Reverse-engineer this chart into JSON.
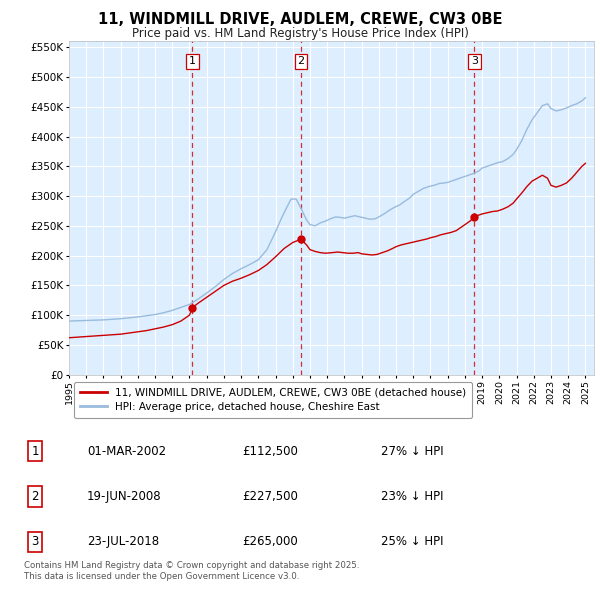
{
  "title": "11, WINDMILL DRIVE, AUDLEM, CREWE, CW3 0BE",
  "subtitle": "Price paid vs. HM Land Registry's House Price Index (HPI)",
  "ylim": [
    0,
    560000
  ],
  "yticks": [
    0,
    50000,
    100000,
    150000,
    200000,
    250000,
    300000,
    350000,
    400000,
    450000,
    500000,
    550000
  ],
  "ytick_labels": [
    "£0",
    "£50K",
    "£100K",
    "£150K",
    "£200K",
    "£250K",
    "£300K",
    "£350K",
    "£400K",
    "£450K",
    "£500K",
    "£550K"
  ],
  "red_line_color": "#cc0000",
  "blue_line_color": "#99bbdd",
  "sale_marker_color": "#cc0000",
  "vline_color": "#cc0000",
  "background_color": "#ffffff",
  "plot_bg_color": "#ddeeff",
  "grid_color": "#ffffff",
  "sale_dates": [
    2002.17,
    2008.47,
    2018.55
  ],
  "sale_prices": [
    112500,
    227500,
    265000
  ],
  "sale_labels": [
    "1",
    "2",
    "3"
  ],
  "legend_red_label": "11, WINDMILL DRIVE, AUDLEM, CREWE, CW3 0BE (detached house)",
  "legend_blue_label": "HPI: Average price, detached house, Cheshire East",
  "table_rows": [
    [
      "1",
      "01-MAR-2002",
      "£112,500",
      "27% ↓ HPI"
    ],
    [
      "2",
      "19-JUN-2008",
      "£227,500",
      "23% ↓ HPI"
    ],
    [
      "3",
      "23-JUL-2018",
      "£265,000",
      "25% ↓ HPI"
    ]
  ],
  "footnote": "Contains HM Land Registry data © Crown copyright and database right 2025.\nThis data is licensed under the Open Government Licence v3.0.",
  "title_fontsize": 10.5,
  "subtitle_fontsize": 8.5,
  "tick_fontsize": 7.5,
  "legend_fontsize": 7.5,
  "hpi_years": [
    1995.0,
    1995.5,
    1996.0,
    1996.5,
    1997.0,
    1997.5,
    1998.0,
    1998.5,
    1999.0,
    1999.5,
    2000.0,
    2000.5,
    2001.0,
    2001.5,
    2002.0,
    2002.5,
    2003.0,
    2003.5,
    2004.0,
    2004.5,
    2005.0,
    2005.5,
    2006.0,
    2006.5,
    2007.0,
    2007.3,
    2007.6,
    2007.9,
    2008.2,
    2008.5,
    2008.8,
    2009.0,
    2009.3,
    2009.6,
    2009.9,
    2010.2,
    2010.5,
    2010.8,
    2011.0,
    2011.3,
    2011.6,
    2011.9,
    2012.2,
    2012.5,
    2012.8,
    2013.0,
    2013.3,
    2013.6,
    2013.9,
    2014.2,
    2014.5,
    2014.8,
    2015.0,
    2015.3,
    2015.6,
    2015.9,
    2016.2,
    2016.5,
    2016.8,
    2017.0,
    2017.3,
    2017.6,
    2017.9,
    2018.2,
    2018.5,
    2018.8,
    2019.0,
    2019.3,
    2019.6,
    2019.9,
    2020.2,
    2020.5,
    2020.8,
    2021.0,
    2021.3,
    2021.6,
    2021.9,
    2022.2,
    2022.5,
    2022.8,
    2023.0,
    2023.3,
    2023.6,
    2023.9,
    2024.2,
    2024.5,
    2024.8,
    2025.0
  ],
  "hpi_prices": [
    90000,
    90500,
    91000,
    91500,
    92000,
    93000,
    94000,
    95500,
    97000,
    99000,
    101000,
    104000,
    108000,
    113000,
    118000,
    127000,
    137000,
    148000,
    160000,
    170000,
    178000,
    185000,
    193000,
    210000,
    240000,
    260000,
    278000,
    295000,
    295000,
    278000,
    260000,
    252000,
    250000,
    255000,
    258000,
    262000,
    265000,
    264000,
    263000,
    265000,
    267000,
    265000,
    263000,
    261000,
    262000,
    265000,
    270000,
    276000,
    281000,
    285000,
    291000,
    297000,
    303000,
    308000,
    313000,
    316000,
    318000,
    321000,
    322000,
    323000,
    326000,
    329000,
    332000,
    335000,
    338000,
    342000,
    347000,
    350000,
    353000,
    356000,
    358000,
    363000,
    370000,
    378000,
    393000,
    412000,
    428000,
    440000,
    452000,
    455000,
    447000,
    443000,
    445000,
    448000,
    452000,
    455000,
    460000,
    465000
  ],
  "red_years": [
    1995.0,
    1995.5,
    1996.0,
    1996.5,
    1997.0,
    1997.5,
    1998.0,
    1998.5,
    1999.0,
    1999.5,
    2000.0,
    2000.5,
    2001.0,
    2001.5,
    2002.0,
    2002.17,
    2002.5,
    2003.0,
    2003.5,
    2004.0,
    2004.5,
    2005.0,
    2005.5,
    2006.0,
    2006.5,
    2007.0,
    2007.5,
    2007.9,
    2008.0,
    2008.47,
    2008.8,
    2009.0,
    2009.3,
    2009.6,
    2009.9,
    2010.3,
    2010.6,
    2010.9,
    2011.2,
    2011.5,
    2011.8,
    2012.0,
    2012.3,
    2012.6,
    2012.9,
    2013.2,
    2013.5,
    2013.8,
    2014.0,
    2014.3,
    2014.6,
    2014.9,
    2015.2,
    2015.5,
    2015.8,
    2016.0,
    2016.3,
    2016.6,
    2016.9,
    2017.2,
    2017.5,
    2017.8,
    2018.0,
    2018.3,
    2018.55,
    2018.8,
    2019.0,
    2019.3,
    2019.6,
    2019.9,
    2020.2,
    2020.5,
    2020.8,
    2021.0,
    2021.3,
    2021.6,
    2021.9,
    2022.2,
    2022.5,
    2022.8,
    2023.0,
    2023.3,
    2023.6,
    2023.9,
    2024.2,
    2024.5,
    2024.8,
    2025.0
  ],
  "red_prices": [
    62000,
    63000,
    64000,
    65000,
    66000,
    67000,
    68000,
    70000,
    72000,
    74000,
    77000,
    80000,
    84000,
    90000,
    100000,
    112500,
    120000,
    130000,
    140000,
    150000,
    157000,
    162000,
    168000,
    175000,
    185000,
    198000,
    212000,
    220000,
    222000,
    227500,
    218000,
    210000,
    207000,
    205000,
    204000,
    205000,
    206000,
    205000,
    204000,
    204000,
    205000,
    203000,
    202000,
    201000,
    202000,
    205000,
    208000,
    212000,
    215000,
    218000,
    220000,
    222000,
    224000,
    226000,
    228000,
    230000,
    232000,
    235000,
    237000,
    239000,
    242000,
    248000,
    252000,
    258000,
    265000,
    268000,
    270000,
    272000,
    274000,
    275000,
    278000,
    282000,
    288000,
    295000,
    305000,
    316000,
    325000,
    330000,
    335000,
    330000,
    318000,
    315000,
    318000,
    322000,
    330000,
    340000,
    350000,
    355000
  ]
}
